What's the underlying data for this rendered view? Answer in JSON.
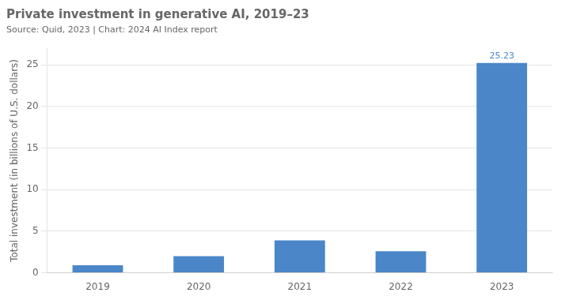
{
  "chart_data": {
    "type": "bar",
    "title": "Private investment in generative AI, 2019–23",
    "subtitle": "Source: Quid, 2023 | Chart: 2024 AI Index report",
    "categories": [
      "2019",
      "2020",
      "2021",
      "2022",
      "2023"
    ],
    "values": [
      0.9,
      2.0,
      3.9,
      2.6,
      25.23
    ],
    "color": "#4a86c8",
    "ylabel": "Total investment (in billions of U.S. dollars)",
    "ylim": [
      0,
      27
    ],
    "yticks": [
      0,
      5,
      10,
      15,
      20,
      25
    ],
    "grid": true,
    "annotations": [
      {
        "x": "2023",
        "y": 25.23,
        "text": "25.23"
      }
    ]
  }
}
